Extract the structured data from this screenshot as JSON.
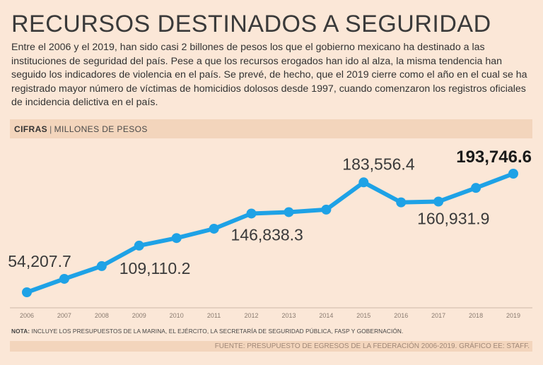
{
  "header": {
    "title": "RECURSOS DESTINADOS A SEGURIDAD",
    "intro": "Entre el 2006 y el 2019, han sido casi 2 billones de pesos los que el gobierno mexicano ha destinado a las instituciones de seguridad del país. Pese a que los recursos erogados han ido al alza, la misma tendencia han seguido los indicadores de violencia en el país. Se prevé, de hecho, que el 2019 cierre como el año en el cual se ha registrado mayor número de víctimas de homicidios dolosos desde 1997, cuando comenzaron los registros oficiales de incidencia delictiva en el país."
  },
  "band": {
    "label_bold": "CIFRAS",
    "separator": "|",
    "label": "MILLONES DE PESOS"
  },
  "colors": {
    "line": "#1ea2e6",
    "background": "#fbe7d7",
    "band": "#f3d5bc"
  },
  "chart_data": {
    "type": "line",
    "title": "RECURSOS DESTINADOS A SEGURIDAD",
    "ylabel": "MILLONES DE PESOS",
    "xlabel": "",
    "x": [
      "2006",
      "2007",
      "2008",
      "2009",
      "2010",
      "2011",
      "2012",
      "2013",
      "2014",
      "2015",
      "2016",
      "2017",
      "2018",
      "2019"
    ],
    "values": [
      54207.7,
      70000,
      85000,
      109110.2,
      118000,
      129000,
      146838.3,
      148500,
      151500,
      183556.4,
      160000,
      160931.9,
      177000,
      193746.6
    ],
    "labels": [
      {
        "index": 0,
        "text": "54,207.7",
        "bold": false
      },
      {
        "index": 3,
        "text": "109,110.2",
        "bold": false
      },
      {
        "index": 6,
        "text": "146,838.3",
        "bold": false
      },
      {
        "index": 9,
        "text": "183,556.4",
        "bold": false
      },
      {
        "index": 11,
        "text": "160,931.9",
        "bold": false
      },
      {
        "index": 13,
        "text": "193,746.6",
        "bold": true
      }
    ],
    "grid": false,
    "legend": "none"
  },
  "footer": {
    "note_bold": "NOTA:",
    "note": "INCLUYE LOS PRESUPUESTOS DE LA MARINA, EL EJÉRCITO, LA SECRETARÍA DE SEGURIDAD PÚBLICA, FASP Y GOBERNACIÓN.",
    "source": "FUENTE: PRESUPUESTO DE EGRESOS DE LA FEDERACIÓN 2006-2019. GRÁFICO EE: STAFF."
  }
}
